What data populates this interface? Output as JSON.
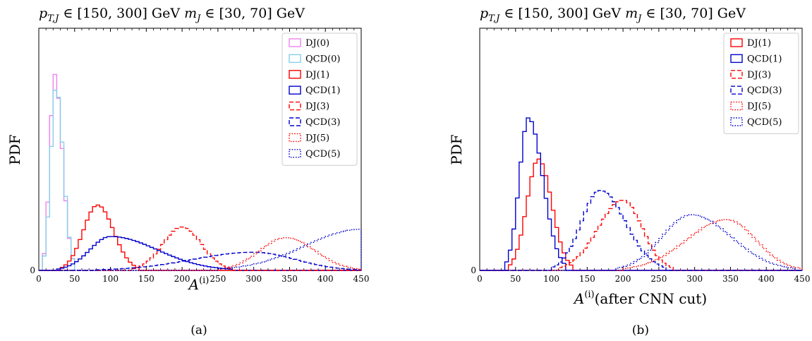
{
  "chart_data": [
    {
      "type": "histogram",
      "panel_label": "(a)",
      "title": "p_{T,J} ∈ [150, 300] GeV m_J ∈ [30, 70] GeV",
      "xlabel": "A^(i)",
      "ylabel": "PDF",
      "xlim": [
        0,
        450
      ],
      "xticks": [
        "0",
        "50",
        "100",
        "150",
        "200",
        "250",
        "300",
        "350",
        "400",
        "450"
      ],
      "yticks": [
        "0"
      ],
      "ylim": [
        0,
        1.0
      ],
      "bin_width": 5,
      "grid": false,
      "legend_position": "top-right",
      "series": [
        {
          "name": "DJ(0)",
          "color": "#ee82ee",
          "style": "solid",
          "shape": "histo",
          "x_min": 5,
          "x_max": 50,
          "mode": 22,
          "peak": 0.81
        },
        {
          "name": "QCD(0)",
          "color": "#87ceeb",
          "style": "solid",
          "shape": "histo",
          "x_min": 5,
          "x_max": 50,
          "mode": 24,
          "peak": 0.76
        },
        {
          "name": "DJ(1)",
          "color": "#ff0000",
          "style": "solid",
          "shape": "histo",
          "x_min": 30,
          "x_max": 140,
          "mode": 82,
          "peak": 0.27
        },
        {
          "name": "QCD(1)",
          "color": "#0000cc",
          "style": "solid",
          "shape": "histo",
          "x_min": 25,
          "x_max": 270,
          "mode": 100,
          "peak": 0.14
        },
        {
          "name": "DJ(3)",
          "color": "#ff0000",
          "style": "dashed",
          "shape": "histo",
          "x_min": 130,
          "x_max": 270,
          "mode": 200,
          "peak": 0.18
        },
        {
          "name": "QCD(3)",
          "color": "#0000cc",
          "style": "dashed",
          "shape": "histo",
          "x_min": 80,
          "x_max": 450,
          "mode": 300,
          "peak": 0.075
        },
        {
          "name": "DJ(5)",
          "color": "#ff0000",
          "style": "dotted",
          "shape": "histo",
          "x_min": 250,
          "x_max": 450,
          "mode": 345,
          "peak": 0.135
        },
        {
          "name": "QCD(5)",
          "color": "#0000cc",
          "style": "dotted",
          "shape": "histo",
          "x_min": 250,
          "x_max": 450,
          "mode": 450,
          "peak": 0.17
        }
      ]
    },
    {
      "type": "histogram",
      "panel_label": "(b)",
      "title": "p_{T,J} ∈ [150, 300] GeV m_J ∈ [30, 70] GeV",
      "xlabel": "A^(i)(after CNN cut)",
      "ylabel": "PDF",
      "xlim": [
        0,
        450
      ],
      "xticks": [
        "0",
        "50",
        "100",
        "150",
        "200",
        "250",
        "300",
        "350",
        "400",
        "450"
      ],
      "yticks": [
        "0"
      ],
      "ylim": [
        0,
        1.0
      ],
      "bin_width": 5,
      "grid": false,
      "legend_position": "top-right",
      "series": [
        {
          "name": "DJ(1)",
          "color": "#ff0000",
          "style": "solid",
          "shape": "histo",
          "x_min": 40,
          "x_max": 130,
          "mode": 82,
          "peak": 0.46
        },
        {
          "name": "QCD(1)",
          "color": "#0000cc",
          "style": "solid",
          "shape": "histo",
          "x_min": 35,
          "x_max": 120,
          "mode": 68,
          "peak": 0.63
        },
        {
          "name": "DJ(3)",
          "color": "#ff0000",
          "style": "dashed",
          "shape": "histo",
          "x_min": 110,
          "x_max": 270,
          "mode": 200,
          "peak": 0.29
        },
        {
          "name": "QCD(3)",
          "color": "#0000cc",
          "style": "dashed",
          "shape": "histo",
          "x_min": 100,
          "x_max": 260,
          "mode": 168,
          "peak": 0.33
        },
        {
          "name": "DJ(5)",
          "color": "#ff0000",
          "style": "dotted",
          "shape": "histo",
          "x_min": 200,
          "x_max": 450,
          "mode": 345,
          "peak": 0.21
        },
        {
          "name": "QCD(5)",
          "color": "#0000cc",
          "style": "dotted",
          "shape": "histo",
          "x_min": 190,
          "x_max": 440,
          "mode": 295,
          "peak": 0.23
        }
      ]
    }
  ]
}
